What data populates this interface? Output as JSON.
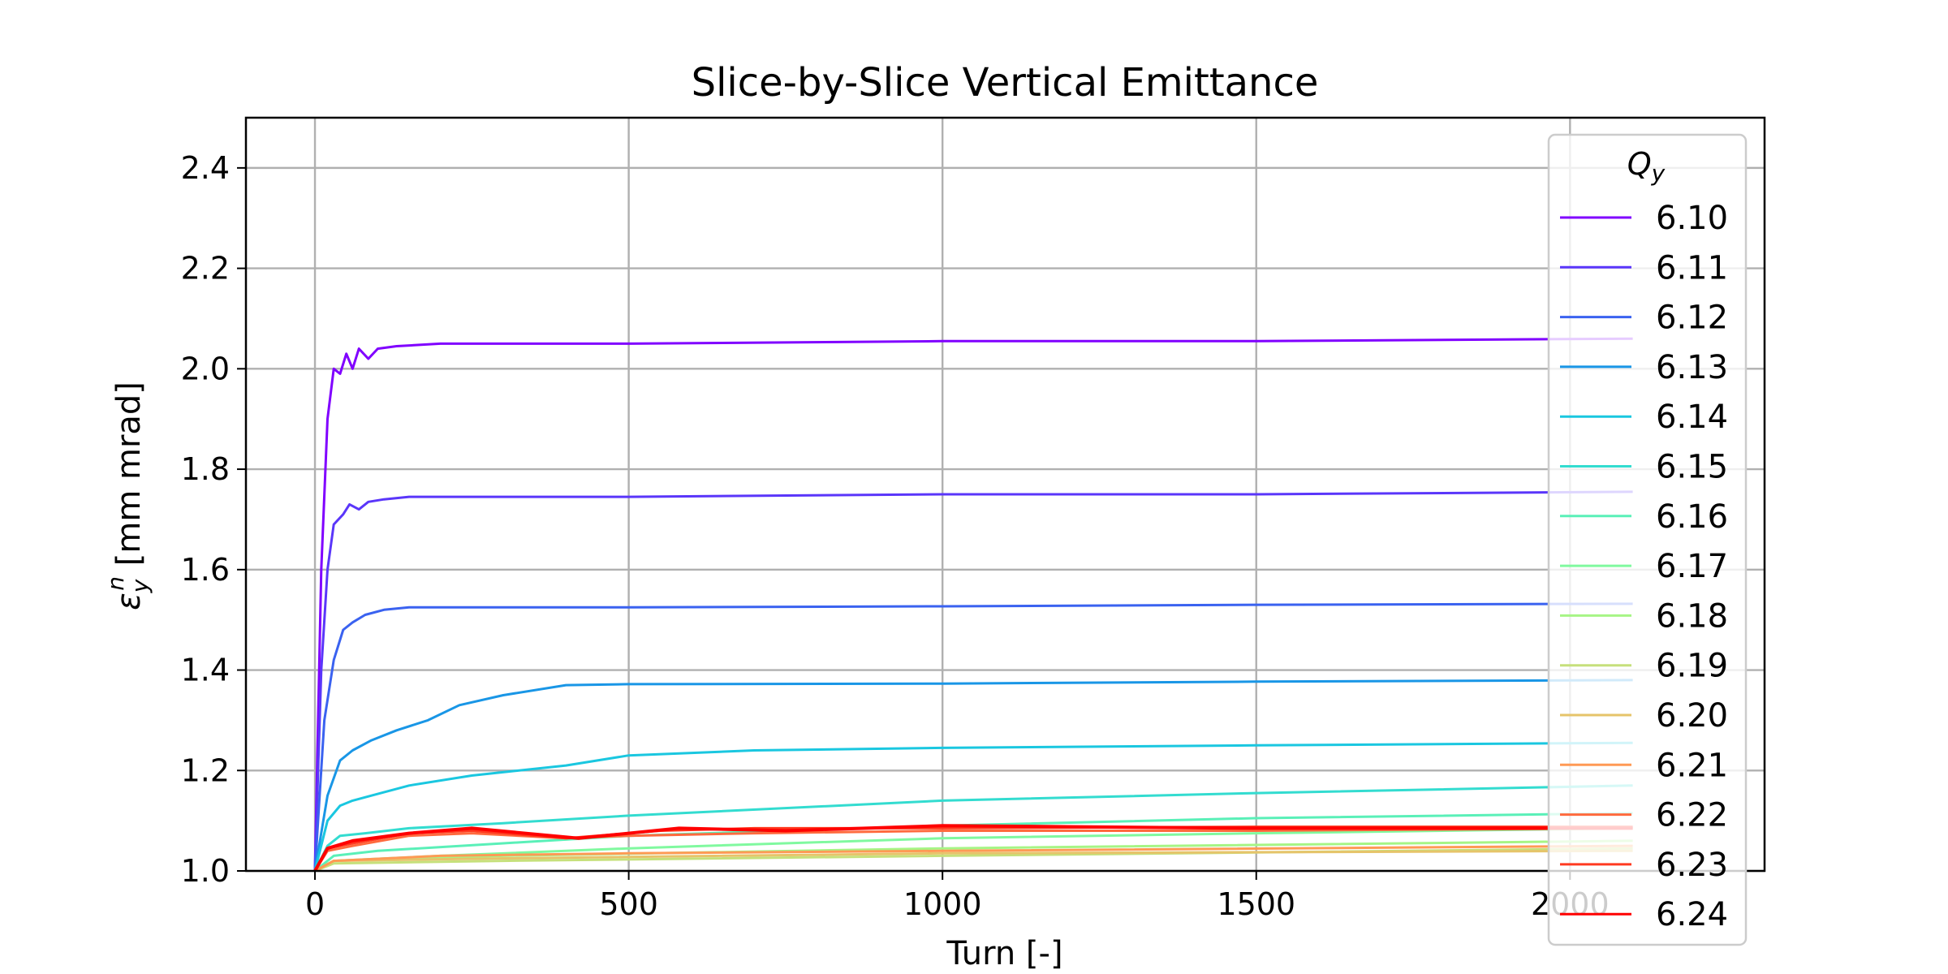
{
  "chart_data": {
    "type": "line",
    "title": "Slice-by-Slice Vertical Emittance",
    "xlabel": "Turn [-]",
    "ylabel": "ε_y^n [mm mrad]",
    "xlim": [
      -110,
      2310
    ],
    "ylim": [
      1.0,
      2.5
    ],
    "xticks": [
      "0",
      "500",
      "1000",
      "1500",
      "2000"
    ],
    "yticks": [
      "1.0",
      "1.2",
      "1.4",
      "1.6",
      "1.8",
      "2.0",
      "2.2",
      "2.4"
    ],
    "grid": true,
    "legend": {
      "title": "Q_y",
      "placement": "upper-right"
    },
    "series": [
      {
        "name": "6.10",
        "color": "#8000ff",
        "points": [
          [
            0,
            1.0
          ],
          [
            10,
            1.6
          ],
          [
            20,
            1.9
          ],
          [
            30,
            2.0
          ],
          [
            40,
            1.99
          ],
          [
            50,
            2.03
          ],
          [
            60,
            2.0
          ],
          [
            70,
            2.04
          ],
          [
            85,
            2.02
          ],
          [
            100,
            2.04
          ],
          [
            130,
            2.045
          ],
          [
            200,
            2.05
          ],
          [
            500,
            2.05
          ],
          [
            1000,
            2.055
          ],
          [
            1500,
            2.055
          ],
          [
            2100,
            2.06
          ]
        ]
      },
      {
        "name": "6.11",
        "color": "#5a36fa",
        "points": [
          [
            0,
            1.0
          ],
          [
            10,
            1.4
          ],
          [
            20,
            1.6
          ],
          [
            30,
            1.69
          ],
          [
            45,
            1.71
          ],
          [
            55,
            1.73
          ],
          [
            70,
            1.72
          ],
          [
            85,
            1.735
          ],
          [
            110,
            1.74
          ],
          [
            150,
            1.745
          ],
          [
            500,
            1.745
          ],
          [
            1000,
            1.75
          ],
          [
            1500,
            1.75
          ],
          [
            2100,
            1.755
          ]
        ]
      },
      {
        "name": "6.12",
        "color": "#3a62f0",
        "points": [
          [
            0,
            1.0
          ],
          [
            15,
            1.3
          ],
          [
            30,
            1.42
          ],
          [
            45,
            1.48
          ],
          [
            60,
            1.495
          ],
          [
            80,
            1.51
          ],
          [
            110,
            1.52
          ],
          [
            150,
            1.525
          ],
          [
            500,
            1.525
          ],
          [
            1000,
            1.527
          ],
          [
            1500,
            1.53
          ],
          [
            2100,
            1.532
          ]
        ]
      },
      {
        "name": "6.13",
        "color": "#1996e6",
        "points": [
          [
            0,
            1.0
          ],
          [
            20,
            1.15
          ],
          [
            40,
            1.22
          ],
          [
            60,
            1.24
          ],
          [
            90,
            1.26
          ],
          [
            130,
            1.28
          ],
          [
            180,
            1.3
          ],
          [
            230,
            1.33
          ],
          [
            300,
            1.35
          ],
          [
            400,
            1.37
          ],
          [
            500,
            1.372
          ],
          [
            1000,
            1.373
          ],
          [
            1500,
            1.377
          ],
          [
            2100,
            1.38
          ]
        ]
      },
      {
        "name": "6.14",
        "color": "#1ac7e0",
        "points": [
          [
            0,
            1.0
          ],
          [
            20,
            1.1
          ],
          [
            40,
            1.13
          ],
          [
            60,
            1.14
          ],
          [
            90,
            1.15
          ],
          [
            150,
            1.17
          ],
          [
            250,
            1.19
          ],
          [
            400,
            1.21
          ],
          [
            500,
            1.23
          ],
          [
            700,
            1.24
          ],
          [
            1000,
            1.245
          ],
          [
            1500,
            1.25
          ],
          [
            2100,
            1.255
          ]
        ]
      },
      {
        "name": "6.15",
        "color": "#33dcd0",
        "points": [
          [
            0,
            1.0
          ],
          [
            20,
            1.05
          ],
          [
            40,
            1.07
          ],
          [
            80,
            1.075
          ],
          [
            150,
            1.085
          ],
          [
            300,
            1.095
          ],
          [
            500,
            1.11
          ],
          [
            1000,
            1.14
          ],
          [
            1500,
            1.155
          ],
          [
            2100,
            1.17
          ]
        ]
      },
      {
        "name": "6.16",
        "color": "#5af0b8",
        "points": [
          [
            0,
            1.0
          ],
          [
            30,
            1.03
          ],
          [
            100,
            1.04
          ],
          [
            300,
            1.055
          ],
          [
            500,
            1.07
          ],
          [
            1000,
            1.09
          ],
          [
            1500,
            1.105
          ],
          [
            2100,
            1.115
          ]
        ]
      },
      {
        "name": "6.17",
        "color": "#80f99f",
        "points": [
          [
            0,
            1.0
          ],
          [
            30,
            1.02
          ],
          [
            200,
            1.03
          ],
          [
            500,
            1.045
          ],
          [
            1000,
            1.065
          ],
          [
            1500,
            1.075
          ],
          [
            2100,
            1.085
          ]
        ]
      },
      {
        "name": "6.18",
        "color": "#a6f585",
        "points": [
          [
            0,
            1.0
          ],
          [
            30,
            1.02
          ],
          [
            300,
            1.03
          ],
          [
            1000,
            1.045
          ],
          [
            2100,
            1.06
          ]
        ]
      },
      {
        "name": "6.19",
        "color": "#c6e07b",
        "points": [
          [
            0,
            1.0
          ],
          [
            30,
            1.015
          ],
          [
            300,
            1.02
          ],
          [
            1000,
            1.03
          ],
          [
            2100,
            1.045
          ]
        ]
      },
      {
        "name": "6.20",
        "color": "#e6c46a",
        "points": [
          [
            0,
            1.0
          ],
          [
            30,
            1.02
          ],
          [
            300,
            1.025
          ],
          [
            1000,
            1.035
          ],
          [
            2100,
            1.04
          ]
        ]
      },
      {
        "name": "6.21",
        "color": "#ff9a55",
        "points": [
          [
            0,
            1.0
          ],
          [
            30,
            1.02
          ],
          [
            200,
            1.03
          ],
          [
            500,
            1.035
          ],
          [
            1000,
            1.04
          ],
          [
            2100,
            1.05
          ]
        ]
      },
      {
        "name": "6.22",
        "color": "#ff6a3e",
        "points": [
          [
            0,
            1.0
          ],
          [
            20,
            1.04
          ],
          [
            60,
            1.05
          ],
          [
            150,
            1.07
          ],
          [
            250,
            1.075
          ],
          [
            400,
            1.065
          ],
          [
            500,
            1.07
          ],
          [
            700,
            1.075
          ],
          [
            1000,
            1.08
          ],
          [
            1500,
            1.08
          ],
          [
            2100,
            1.085
          ]
        ]
      },
      {
        "name": "6.23",
        "color": "#ff3a20",
        "points": [
          [
            0,
            1.0
          ],
          [
            20,
            1.045
          ],
          [
            60,
            1.055
          ],
          [
            150,
            1.075
          ],
          [
            250,
            1.08
          ],
          [
            400,
            1.065
          ],
          [
            550,
            1.08
          ],
          [
            700,
            1.085
          ],
          [
            1000,
            1.085
          ],
          [
            1500,
            1.088
          ],
          [
            2100,
            1.088
          ]
        ]
      },
      {
        "name": "6.24",
        "color": "#ff0000",
        "points": [
          [
            0,
            1.0
          ],
          [
            20,
            1.045
          ],
          [
            60,
            1.06
          ],
          [
            150,
            1.075
          ],
          [
            250,
            1.085
          ],
          [
            420,
            1.065
          ],
          [
            580,
            1.085
          ],
          [
            750,
            1.08
          ],
          [
            1000,
            1.09
          ],
          [
            1500,
            1.085
          ],
          [
            2100,
            1.085
          ]
        ]
      }
    ]
  }
}
